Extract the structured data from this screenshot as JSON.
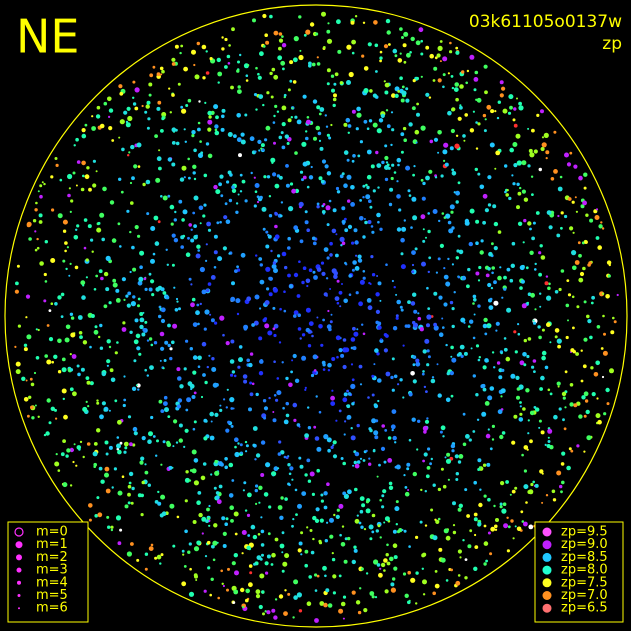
{
  "header": {
    "direction": "NE",
    "frame_id": "03k61105o0137w",
    "color_key": "zp"
  },
  "magnitude_legend": {
    "labels": [
      "m=0",
      "m=1",
      "m=2",
      "m=3",
      "m=4",
      "m=5",
      "m=6"
    ]
  },
  "zp_legend": {
    "labels": [
      "zp=9.5",
      "zp=9.0",
      "zp=8.5",
      "zp=8.0",
      "zp=7.5",
      "zp=7.0",
      "zp=6.5"
    ],
    "colors": [
      "#ff50ff",
      "#c020ff",
      "#20c8ff",
      "#20ffd0",
      "#ffff20",
      "#ff9020",
      "#ff7070"
    ]
  }
}
